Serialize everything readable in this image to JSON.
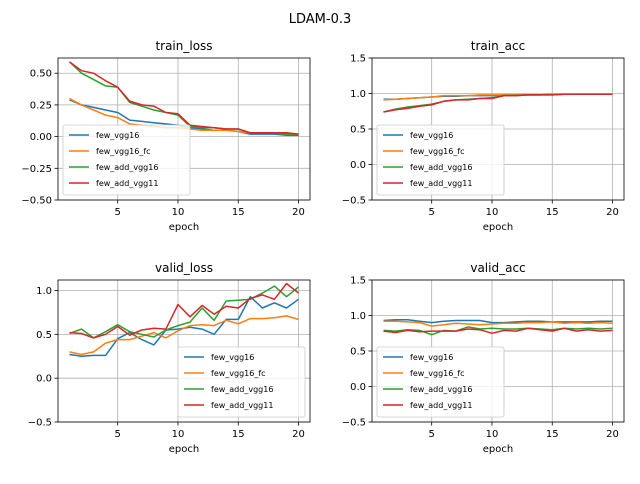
{
  "figure": {
    "suptitle": "LDAM-0.3"
  },
  "colors": {
    "few_vgg16": "#1f77b4",
    "few_vgg16_fc": "#ff7f0e",
    "few_add_vgg16": "#2ca02c",
    "few_add_vgg11": "#d62728"
  },
  "chart_data": [
    {
      "type": "line",
      "title": "train_loss",
      "xlabel": "epoch",
      "ylabel": "",
      "xlim": [
        0.05,
        20.95
      ],
      "ylim": [
        -0.5,
        0.62
      ],
      "xticks": [
        "5",
        "10",
        "15",
        "20"
      ],
      "xtick_values": [
        5,
        10,
        15,
        20
      ],
      "yticks": [
        "−0.50",
        "−0.25",
        "0.00",
        "0.25",
        "0.50"
      ],
      "ytick_values": [
        -0.5,
        -0.25,
        0.0,
        0.25,
        0.5
      ],
      "grid": true,
      "legend": "lower-left",
      "x": [
        1,
        2,
        3,
        4,
        5,
        6,
        7,
        8,
        9,
        10,
        11,
        12,
        13,
        14,
        15,
        16,
        17,
        18,
        19,
        20
      ],
      "series": [
        {
          "name": "few_vgg16",
          "color": "#1f77b4",
          "values": [
            0.29,
            0.25,
            0.23,
            0.21,
            0.19,
            0.13,
            0.12,
            0.11,
            0.1,
            0.09,
            0.07,
            0.06,
            0.05,
            0.05,
            0.04,
            0.02,
            0.02,
            0.02,
            0.01,
            0.01
          ]
        },
        {
          "name": "few_vgg16_fc",
          "color": "#ff7f0e",
          "values": [
            0.3,
            0.25,
            0.21,
            0.17,
            0.15,
            0.1,
            0.09,
            0.08,
            0.07,
            0.07,
            0.06,
            0.05,
            0.05,
            0.05,
            0.04,
            0.03,
            0.03,
            0.03,
            0.02,
            0.02
          ]
        },
        {
          "name": "few_add_vgg16",
          "color": "#2ca02c",
          "values": [
            0.59,
            0.5,
            0.45,
            0.4,
            0.39,
            0.27,
            0.24,
            0.21,
            0.19,
            0.17,
            0.08,
            0.07,
            0.07,
            0.06,
            0.06,
            0.03,
            0.03,
            0.03,
            0.02,
            0.02
          ]
        },
        {
          "name": "few_add_vgg11",
          "color": "#d62728",
          "values": [
            0.59,
            0.52,
            0.5,
            0.44,
            0.39,
            0.28,
            0.25,
            0.24,
            0.19,
            0.18,
            0.09,
            0.08,
            0.07,
            0.06,
            0.06,
            0.03,
            0.03,
            0.03,
            0.03,
            0.02
          ]
        }
      ]
    },
    {
      "type": "line",
      "title": "train_acc",
      "xlabel": "epoch",
      "ylabel": "",
      "xlim": [
        0.05,
        20.95
      ],
      "ylim": [
        -0.5,
        1.5
      ],
      "xticks": [
        "5",
        "10",
        "15",
        "20"
      ],
      "xtick_values": [
        5,
        10,
        15,
        20
      ],
      "yticks": [
        "−0.5",
        "0.0",
        "0.5",
        "1.0",
        "1.5"
      ],
      "ytick_values": [
        -0.5,
        0.0,
        0.5,
        1.0,
        1.5
      ],
      "grid": true,
      "legend": "lower-left",
      "x": [
        1,
        2,
        3,
        4,
        5,
        6,
        7,
        8,
        9,
        10,
        11,
        12,
        13,
        14,
        15,
        16,
        17,
        18,
        19,
        20
      ],
      "series": [
        {
          "name": "few_vgg16",
          "color": "#1f77b4",
          "values": [
            0.92,
            0.92,
            0.93,
            0.94,
            0.95,
            0.96,
            0.96,
            0.97,
            0.97,
            0.97,
            0.98,
            0.98,
            0.98,
            0.98,
            0.99,
            0.99,
            0.99,
            0.99,
            0.99,
            0.99
          ]
        },
        {
          "name": "few_vgg16_fc",
          "color": "#ff7f0e",
          "values": [
            0.91,
            0.92,
            0.93,
            0.94,
            0.95,
            0.97,
            0.97,
            0.97,
            0.98,
            0.98,
            0.98,
            0.98,
            0.98,
            0.98,
            0.99,
            0.99,
            0.99,
            0.99,
            0.99,
            0.99
          ]
        },
        {
          "name": "few_add_vgg16",
          "color": "#2ca02c",
          "values": [
            0.74,
            0.78,
            0.81,
            0.83,
            0.85,
            0.89,
            0.91,
            0.92,
            0.93,
            0.94,
            0.97,
            0.97,
            0.98,
            0.98,
            0.98,
            0.99,
            0.99,
            0.99,
            0.99,
            0.99
          ]
        },
        {
          "name": "few_add_vgg11",
          "color": "#d62728",
          "values": [
            0.74,
            0.77,
            0.79,
            0.82,
            0.84,
            0.89,
            0.91,
            0.91,
            0.93,
            0.93,
            0.97,
            0.97,
            0.98,
            0.98,
            0.98,
            0.99,
            0.99,
            0.99,
            0.99,
            0.99
          ]
        }
      ]
    },
    {
      "type": "line",
      "title": "valid_loss",
      "xlabel": "epoch",
      "ylabel": "",
      "xlim": [
        0.05,
        20.95
      ],
      "ylim": [
        -0.5,
        1.12
      ],
      "xticks": [
        "5",
        "10",
        "15",
        "20"
      ],
      "xtick_values": [
        5,
        10,
        15,
        20
      ],
      "yticks": [
        "−0.5",
        "0.0",
        "0.5",
        "1.0"
      ],
      "ytick_values": [
        -0.5,
        0.0,
        0.5,
        1.0
      ],
      "grid": true,
      "legend": "lower-right",
      "x": [
        1,
        2,
        3,
        4,
        5,
        6,
        7,
        8,
        9,
        10,
        11,
        12,
        13,
        14,
        15,
        16,
        17,
        18,
        19,
        20
      ],
      "series": [
        {
          "name": "few_vgg16",
          "color": "#1f77b4",
          "values": [
            0.27,
            0.25,
            0.26,
            0.26,
            0.45,
            0.52,
            0.44,
            0.38,
            0.55,
            0.56,
            0.58,
            0.56,
            0.5,
            0.67,
            0.67,
            0.93,
            0.8,
            0.86,
            0.8,
            0.9
          ]
        },
        {
          "name": "few_vgg16_fc",
          "color": "#ff7f0e",
          "values": [
            0.3,
            0.27,
            0.3,
            0.4,
            0.44,
            0.44,
            0.48,
            0.52,
            0.46,
            0.54,
            0.6,
            0.61,
            0.6,
            0.66,
            0.62,
            0.68,
            0.68,
            0.69,
            0.71,
            0.67
          ]
        },
        {
          "name": "few_add_vgg16",
          "color": "#2ca02c",
          "values": [
            0.51,
            0.56,
            0.46,
            0.53,
            0.61,
            0.53,
            0.5,
            0.47,
            0.55,
            0.6,
            0.64,
            0.8,
            0.66,
            0.88,
            0.89,
            0.9,
            0.97,
            1.05,
            0.93,
            1.04
          ]
        },
        {
          "name": "few_add_vgg11",
          "color": "#d62728",
          "values": [
            0.52,
            0.51,
            0.46,
            0.5,
            0.59,
            0.49,
            0.55,
            0.57,
            0.56,
            0.84,
            0.7,
            0.83,
            0.73,
            0.82,
            0.8,
            0.91,
            0.95,
            0.9,
            1.08,
            0.97
          ]
        }
      ]
    },
    {
      "type": "line",
      "title": "valid_acc",
      "xlabel": "epoch",
      "ylabel": "",
      "xlim": [
        0.05,
        20.95
      ],
      "ylim": [
        -0.5,
        1.5
      ],
      "xticks": [
        "5",
        "10",
        "15",
        "20"
      ],
      "xtick_values": [
        5,
        10,
        15,
        20
      ],
      "yticks": [
        "−0.5",
        "0.0",
        "0.5",
        "1.0",
        "1.5"
      ],
      "ytick_values": [
        -0.5,
        0.0,
        0.5,
        1.0,
        1.5
      ],
      "grid": true,
      "legend": "lower-left",
      "x": [
        1,
        2,
        3,
        4,
        5,
        6,
        7,
        8,
        9,
        10,
        11,
        12,
        13,
        14,
        15,
        16,
        17,
        18,
        19,
        20
      ],
      "series": [
        {
          "name": "few_vgg16",
          "color": "#1f77b4",
          "values": [
            0.93,
            0.94,
            0.94,
            0.92,
            0.9,
            0.92,
            0.93,
            0.93,
            0.93,
            0.9,
            0.9,
            0.91,
            0.92,
            0.92,
            0.91,
            0.91,
            0.91,
            0.91,
            0.92,
            0.92
          ]
        },
        {
          "name": "few_vgg16_fc",
          "color": "#ff7f0e",
          "values": [
            0.92,
            0.92,
            0.91,
            0.9,
            0.85,
            0.87,
            0.89,
            0.88,
            0.87,
            0.88,
            0.89,
            0.89,
            0.9,
            0.9,
            0.91,
            0.89,
            0.9,
            0.89,
            0.9,
            0.89
          ]
        },
        {
          "name": "few_add_vgg16",
          "color": "#2ca02c",
          "values": [
            0.79,
            0.78,
            0.8,
            0.79,
            0.73,
            0.79,
            0.78,
            0.84,
            0.81,
            0.82,
            0.81,
            0.81,
            0.82,
            0.81,
            0.8,
            0.82,
            0.81,
            0.82,
            0.81,
            0.82
          ]
        },
        {
          "name": "few_add_vgg11",
          "color": "#d62728",
          "values": [
            0.78,
            0.76,
            0.79,
            0.77,
            0.78,
            0.78,
            0.78,
            0.81,
            0.8,
            0.75,
            0.79,
            0.78,
            0.82,
            0.8,
            0.78,
            0.82,
            0.78,
            0.8,
            0.78,
            0.79
          ]
        }
      ]
    }
  ]
}
